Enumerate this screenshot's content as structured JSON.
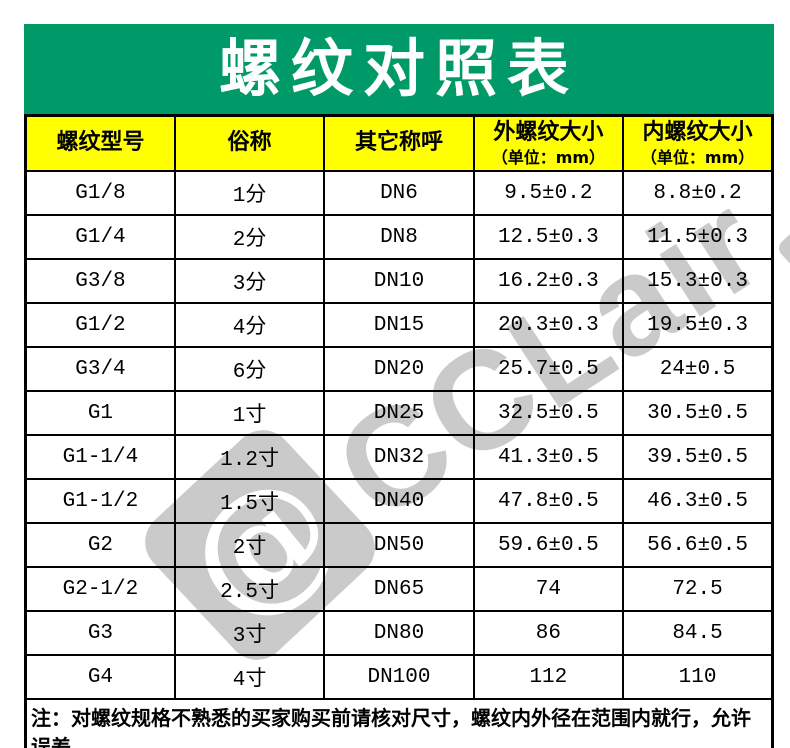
{
  "title": "螺纹对照表",
  "colors": {
    "banner_green": "#009a68",
    "header_yellow": "#ffff00",
    "watermark_gray": "#cacaca",
    "text_black": "#000000",
    "title_white": "#ffffff"
  },
  "watermark": {
    "logo_glyph": "@",
    "text": "CCLair"
  },
  "table": {
    "headers": [
      {
        "label": "螺纹型号",
        "sub": ""
      },
      {
        "label": "俗称",
        "sub": ""
      },
      {
        "label": "其它称呼",
        "sub": ""
      },
      {
        "label": "外螺纹大小",
        "sub": "（单位：mm）"
      },
      {
        "label": "内螺纹大小",
        "sub": "（单位：mm）"
      }
    ],
    "rows": [
      [
        "G1/8",
        "1分",
        "DN6",
        "9.5±0.2",
        "8.8±0.2"
      ],
      [
        "G1/4",
        "2分",
        "DN8",
        "12.5±0.3",
        "11.5±0.3"
      ],
      [
        "G3/8",
        "3分",
        "DN10",
        "16.2±0.3",
        "15.3±0.3"
      ],
      [
        "G1/2",
        "4分",
        "DN15",
        "20.3±0.3",
        "19.5±0.3"
      ],
      [
        "G3/4",
        "6分",
        "DN20",
        "25.7±0.5",
        "24±0.5"
      ],
      [
        "G1",
        "1寸",
        "DN25",
        "32.5±0.5",
        "30.5±0.5"
      ],
      [
        "G1-1/4",
        "1.2寸",
        "DN32",
        "41.3±0.5",
        "39.5±0.5"
      ],
      [
        "G1-1/2",
        "1.5寸",
        "DN40",
        "47.8±0.5",
        "46.3±0.5"
      ],
      [
        "G2",
        "2寸",
        "DN50",
        "59.6±0.5",
        "56.6±0.5"
      ],
      [
        "G2-1/2",
        "2.5寸",
        "DN65",
        "74",
        "72.5"
      ],
      [
        "G3",
        "3寸",
        "DN80",
        "86",
        "84.5"
      ],
      [
        "G4",
        "4寸",
        "DN100",
        "112",
        "110"
      ]
    ],
    "note": "注：对螺纹规格不熟悉的买家购买前请核对尺寸，螺纹内外径在范围内就行，允许误差。"
  }
}
